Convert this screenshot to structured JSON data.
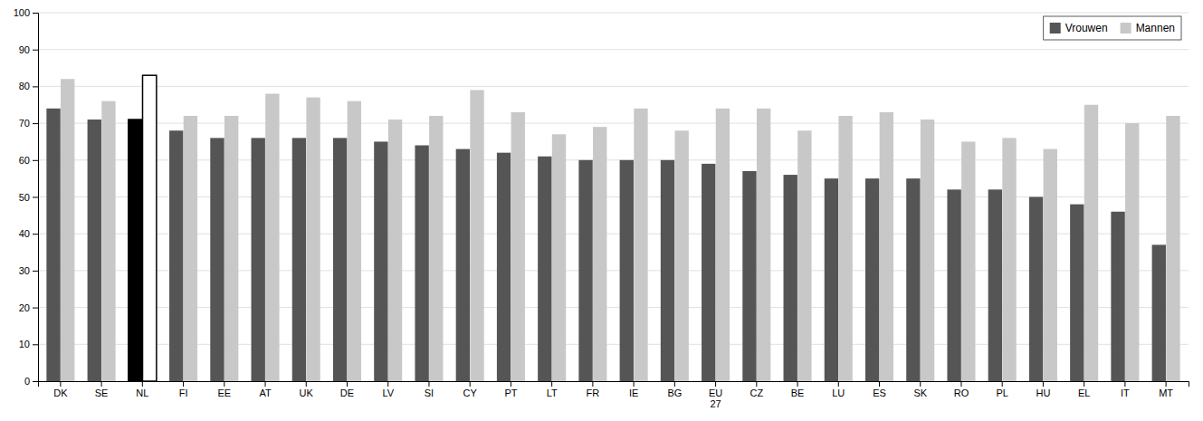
{
  "chart_data": {
    "type": "bar",
    "categories": [
      "DK",
      "SE",
      "NL",
      "FI",
      "EE",
      "AT",
      "UK",
      "DE",
      "LV",
      "SI",
      "CY",
      "PT",
      "LT",
      "FR",
      "IE",
      "BG",
      "EU\n27",
      "CZ",
      "BE",
      "LU",
      "ES",
      "SK",
      "RO",
      "PL",
      "HU",
      "EL",
      "IT",
      "MT"
    ],
    "series": [
      {
        "name": "Vrouwen",
        "color": "#555555",
        "colors": [
          "#555555",
          "#555555",
          "#000000",
          "#555555",
          "#555555",
          "#555555",
          "#555555",
          "#555555",
          "#555555",
          "#555555",
          "#555555",
          "#555555",
          "#555555",
          "#555555",
          "#555555",
          "#555555",
          "#555555",
          "#555555",
          "#555555",
          "#555555",
          "#555555",
          "#555555",
          "#555555",
          "#555555",
          "#555555",
          "#555555",
          "#555555",
          "#555555"
        ],
        "values": [
          74,
          71,
          71,
          68,
          66,
          66,
          66,
          66,
          65,
          64,
          63,
          62,
          61,
          60,
          60,
          60,
          59,
          57,
          56,
          55,
          55,
          55,
          52,
          52,
          50,
          48,
          46,
          37
        ]
      },
      {
        "name": "Mannen",
        "color": "#c8c8c8",
        "colors": [
          "#c8c8c8",
          "#c8c8c8",
          "#ffffff",
          "#c8c8c8",
          "#c8c8c8",
          "#c8c8c8",
          "#c8c8c8",
          "#c8c8c8",
          "#c8c8c8",
          "#c8c8c8",
          "#c8c8c8",
          "#c8c8c8",
          "#c8c8c8",
          "#c8c8c8",
          "#c8c8c8",
          "#c8c8c8",
          "#c8c8c8",
          "#c8c8c8",
          "#c8c8c8",
          "#c8c8c8",
          "#c8c8c8",
          "#c8c8c8",
          "#c8c8c8",
          "#c8c8c8",
          "#c8c8c8",
          "#c8c8c8",
          "#c8c8c8",
          "#c8c8c8"
        ],
        "values": [
          82,
          76,
          83,
          72,
          72,
          78,
          77,
          76,
          71,
          72,
          79,
          73,
          67,
          69,
          74,
          68,
          74,
          74,
          68,
          72,
          73,
          71,
          65,
          66,
          63,
          75,
          70,
          72
        ]
      }
    ],
    "ylim": [
      0,
      100
    ],
    "yticks": [
      0,
      10,
      20,
      30,
      40,
      50,
      60,
      70,
      80,
      90,
      100
    ],
    "grid": true,
    "legend": "top-right"
  }
}
